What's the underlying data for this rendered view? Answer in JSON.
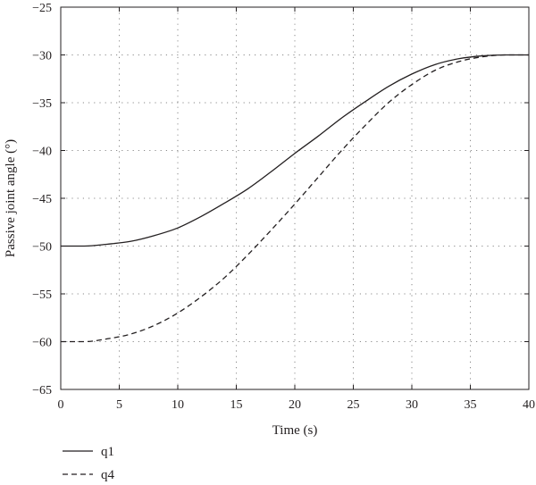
{
  "chart_data": {
    "type": "line",
    "xlabel": "Time (s)",
    "ylabel": "Passive joint angle (°)",
    "xlim": [
      0,
      40
    ],
    "ylim": [
      -65,
      -25
    ],
    "x_ticks": [
      0,
      5,
      10,
      15,
      20,
      25,
      30,
      35,
      40
    ],
    "y_ticks": [
      -25,
      -30,
      -35,
      -40,
      -45,
      -50,
      -55,
      -60,
      -65
    ],
    "grid": "dotted",
    "legend_placement": "below-plot-left",
    "colors": {
      "line": "#231f20",
      "grid": "#8a8a8a"
    },
    "series": [
      {
        "name": "q1",
        "style": "solid",
        "x": [
          0,
          2,
          4,
          6,
          8,
          10,
          12,
          14,
          16,
          18,
          20,
          22,
          24,
          26,
          28,
          30,
          32,
          34,
          36,
          38,
          40
        ],
        "y": [
          -50,
          -50,
          -49.8,
          -49.5,
          -48.9,
          -48.1,
          -46.9,
          -45.5,
          -44,
          -42.2,
          -40.3,
          -38.5,
          -36.6,
          -34.9,
          -33.3,
          -32,
          -31,
          -30.4,
          -30.1,
          -30,
          -30
        ]
      },
      {
        "name": "q4",
        "style": "dashed",
        "x": [
          0,
          2,
          4,
          6,
          8,
          10,
          12,
          14,
          16,
          18,
          20,
          22,
          24,
          26,
          28,
          30,
          32,
          34,
          36,
          38,
          40
        ],
        "y": [
          -60,
          -60,
          -59.7,
          -59.2,
          -58.3,
          -57,
          -55.3,
          -53.3,
          -50.9,
          -48.3,
          -45.6,
          -42.8,
          -40,
          -37.4,
          -35,
          -33.1,
          -31.6,
          -30.7,
          -30.2,
          -30,
          -30
        ]
      }
    ]
  }
}
